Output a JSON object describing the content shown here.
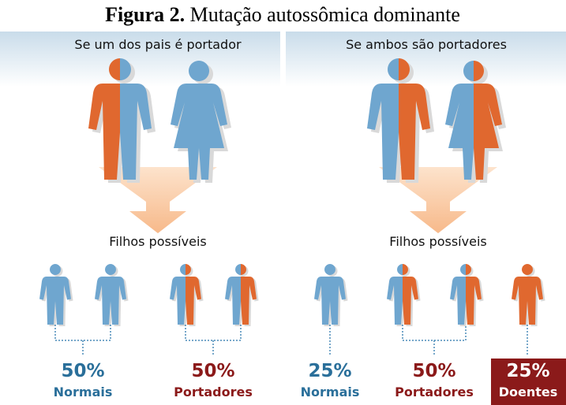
{
  "title": {
    "bold": "Figura 2.",
    "text": "Mutação autossômica dominante"
  },
  "panels": [
    {
      "heading": "Se um dos pais é portador",
      "children_label": "Filhos possíveis",
      "groups": [
        {
          "percent": "50%",
          "label": "Normais"
        },
        {
          "percent": "50%",
          "label": "Portadores"
        }
      ]
    },
    {
      "heading": "Se ambos são portadores",
      "children_label": "Filhos possíveis",
      "groups": [
        {
          "percent": "25%",
          "label": "Normais"
        },
        {
          "percent": "50%",
          "label": "Portadores"
        },
        {
          "percent": "25%",
          "label": "Doentes"
        }
      ]
    }
  ]
}
